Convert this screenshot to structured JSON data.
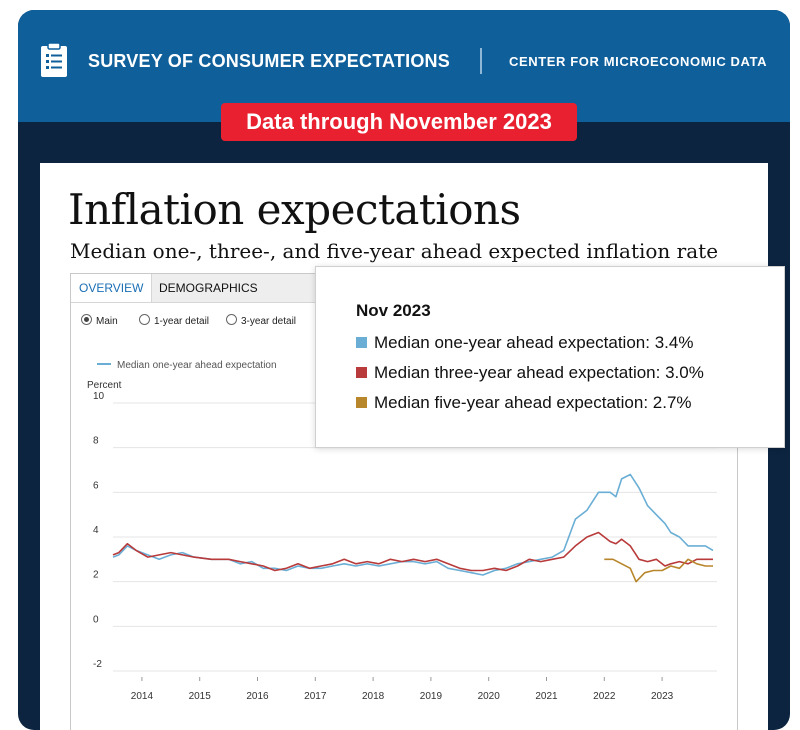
{
  "header": {
    "survey_title": "SURVEY OF CONSUMER EXPECTATIONS",
    "center_title": "CENTER FOR MICROECONOMIC DATA",
    "badge": "Data through November 2023"
  },
  "page": {
    "title": "Inflation expectations",
    "subtitle": "Median one-, three-, and five-year ahead expected inflation rate"
  },
  "tabs": [
    "OVERVIEW",
    "DEMOGRAPHICS"
  ],
  "radio_options": [
    {
      "label": "Main",
      "selected": true
    },
    {
      "label": "1-year detail",
      "selected": false
    },
    {
      "label": "3-year detail",
      "selected": false
    }
  ],
  "legend_visible": "Median one-year ahead expectation",
  "tooltip": {
    "title": "Nov 2023",
    "rows": [
      {
        "label": "Median one-year ahead expectation: 3.4%",
        "color": "#6aaed6"
      },
      {
        "label": "Median three-year ahead expectation: 3.0%",
        "color": "#b83a3a"
      },
      {
        "label": "Median five-year ahead expectation: 2.7%",
        "color": "#b8862b"
      }
    ]
  },
  "chart_data": {
    "type": "line",
    "ylabel": "Percent",
    "ylim": [
      -2,
      10
    ],
    "yticks": [
      10,
      8,
      6,
      4,
      2,
      0,
      -2
    ],
    "xlim": [
      2013.5,
      2023.95
    ],
    "xticks": [
      2014,
      2015,
      2016,
      2017,
      2018,
      2019,
      2020,
      2021,
      2022,
      2023
    ],
    "grid": true,
    "series": [
      {
        "name": "Median one-year ahead expectation",
        "color": "#6aaed6",
        "points": [
          [
            2013.5,
            3.1
          ],
          [
            2013.6,
            3.2
          ],
          [
            2013.75,
            3.6
          ],
          [
            2013.9,
            3.4
          ],
          [
            2014.1,
            3.2
          ],
          [
            2014.3,
            3.0
          ],
          [
            2014.5,
            3.2
          ],
          [
            2014.7,
            3.3
          ],
          [
            2014.9,
            3.1
          ],
          [
            2015.2,
            3.0
          ],
          [
            2015.5,
            3.0
          ],
          [
            2015.7,
            2.8
          ],
          [
            2015.9,
            2.9
          ],
          [
            2016.1,
            2.6
          ],
          [
            2016.3,
            2.6
          ],
          [
            2016.5,
            2.5
          ],
          [
            2016.7,
            2.7
          ],
          [
            2016.9,
            2.6
          ],
          [
            2017.1,
            2.6
          ],
          [
            2017.3,
            2.7
          ],
          [
            2017.5,
            2.8
          ],
          [
            2017.7,
            2.7
          ],
          [
            2017.9,
            2.8
          ],
          [
            2018.1,
            2.7
          ],
          [
            2018.3,
            2.8
          ],
          [
            2018.5,
            2.9
          ],
          [
            2018.7,
            2.9
          ],
          [
            2018.9,
            2.8
          ],
          [
            2019.1,
            2.9
          ],
          [
            2019.3,
            2.6
          ],
          [
            2019.5,
            2.5
          ],
          [
            2019.7,
            2.4
          ],
          [
            2019.9,
            2.3
          ],
          [
            2020.1,
            2.5
          ],
          [
            2020.3,
            2.6
          ],
          [
            2020.5,
            2.8
          ],
          [
            2020.7,
            2.9
          ],
          [
            2020.9,
            3.0
          ],
          [
            2021.1,
            3.1
          ],
          [
            2021.3,
            3.4
          ],
          [
            2021.5,
            4.8
          ],
          [
            2021.7,
            5.2
          ],
          [
            2021.9,
            6.0
          ],
          [
            2022.1,
            6.0
          ],
          [
            2022.2,
            5.8
          ],
          [
            2022.3,
            6.6
          ],
          [
            2022.45,
            6.8
          ],
          [
            2022.6,
            6.2
          ],
          [
            2022.75,
            5.4
          ],
          [
            2022.9,
            5.0
          ],
          [
            2023.05,
            4.6
          ],
          [
            2023.15,
            4.2
          ],
          [
            2023.3,
            4.0
          ],
          [
            2023.45,
            3.6
          ],
          [
            2023.6,
            3.6
          ],
          [
            2023.75,
            3.6
          ],
          [
            2023.88,
            3.4
          ]
        ]
      },
      {
        "name": "Median three-year ahead expectation",
        "color": "#b83a3a",
        "points": [
          [
            2013.5,
            3.2
          ],
          [
            2013.6,
            3.3
          ],
          [
            2013.75,
            3.7
          ],
          [
            2013.9,
            3.4
          ],
          [
            2014.1,
            3.1
          ],
          [
            2014.3,
            3.2
          ],
          [
            2014.5,
            3.3
          ],
          [
            2014.7,
            3.2
          ],
          [
            2014.9,
            3.1
          ],
          [
            2015.2,
            3.0
          ],
          [
            2015.5,
            3.0
          ],
          [
            2015.7,
            2.9
          ],
          [
            2015.9,
            2.8
          ],
          [
            2016.1,
            2.7
          ],
          [
            2016.3,
            2.5
          ],
          [
            2016.5,
            2.6
          ],
          [
            2016.7,
            2.8
          ],
          [
            2016.9,
            2.6
          ],
          [
            2017.1,
            2.7
          ],
          [
            2017.3,
            2.8
          ],
          [
            2017.5,
            3.0
          ],
          [
            2017.7,
            2.8
          ],
          [
            2017.9,
            2.9
          ],
          [
            2018.1,
            2.8
          ],
          [
            2018.3,
            3.0
          ],
          [
            2018.5,
            2.9
          ],
          [
            2018.7,
            3.0
          ],
          [
            2018.9,
            2.9
          ],
          [
            2019.1,
            3.0
          ],
          [
            2019.3,
            2.8
          ],
          [
            2019.5,
            2.6
          ],
          [
            2019.7,
            2.5
          ],
          [
            2019.9,
            2.5
          ],
          [
            2020.1,
            2.6
          ],
          [
            2020.3,
            2.5
          ],
          [
            2020.5,
            2.7
          ],
          [
            2020.7,
            3.0
          ],
          [
            2020.9,
            2.9
          ],
          [
            2021.1,
            3.0
          ],
          [
            2021.3,
            3.1
          ],
          [
            2021.5,
            3.6
          ],
          [
            2021.7,
            4.0
          ],
          [
            2021.9,
            4.2
          ],
          [
            2022.1,
            3.8
          ],
          [
            2022.2,
            3.7
          ],
          [
            2022.3,
            3.9
          ],
          [
            2022.45,
            3.6
          ],
          [
            2022.6,
            3.0
          ],
          [
            2022.75,
            2.9
          ],
          [
            2022.9,
            3.0
          ],
          [
            2023.05,
            2.7
          ],
          [
            2023.15,
            2.8
          ],
          [
            2023.3,
            2.9
          ],
          [
            2023.45,
            2.8
          ],
          [
            2023.6,
            3.0
          ],
          [
            2023.75,
            3.0
          ],
          [
            2023.88,
            3.0
          ]
        ]
      },
      {
        "name": "Median five-year ahead expectation",
        "color": "#b8862b",
        "points": [
          [
            2022.0,
            3.0
          ],
          [
            2022.15,
            3.0
          ],
          [
            2022.3,
            2.8
          ],
          [
            2022.45,
            2.6
          ],
          [
            2022.55,
            2.0
          ],
          [
            2022.7,
            2.4
          ],
          [
            2022.85,
            2.5
          ],
          [
            2023.0,
            2.5
          ],
          [
            2023.15,
            2.7
          ],
          [
            2023.3,
            2.6
          ],
          [
            2023.45,
            3.0
          ],
          [
            2023.6,
            2.8
          ],
          [
            2023.75,
            2.7
          ],
          [
            2023.88,
            2.7
          ]
        ]
      }
    ]
  }
}
